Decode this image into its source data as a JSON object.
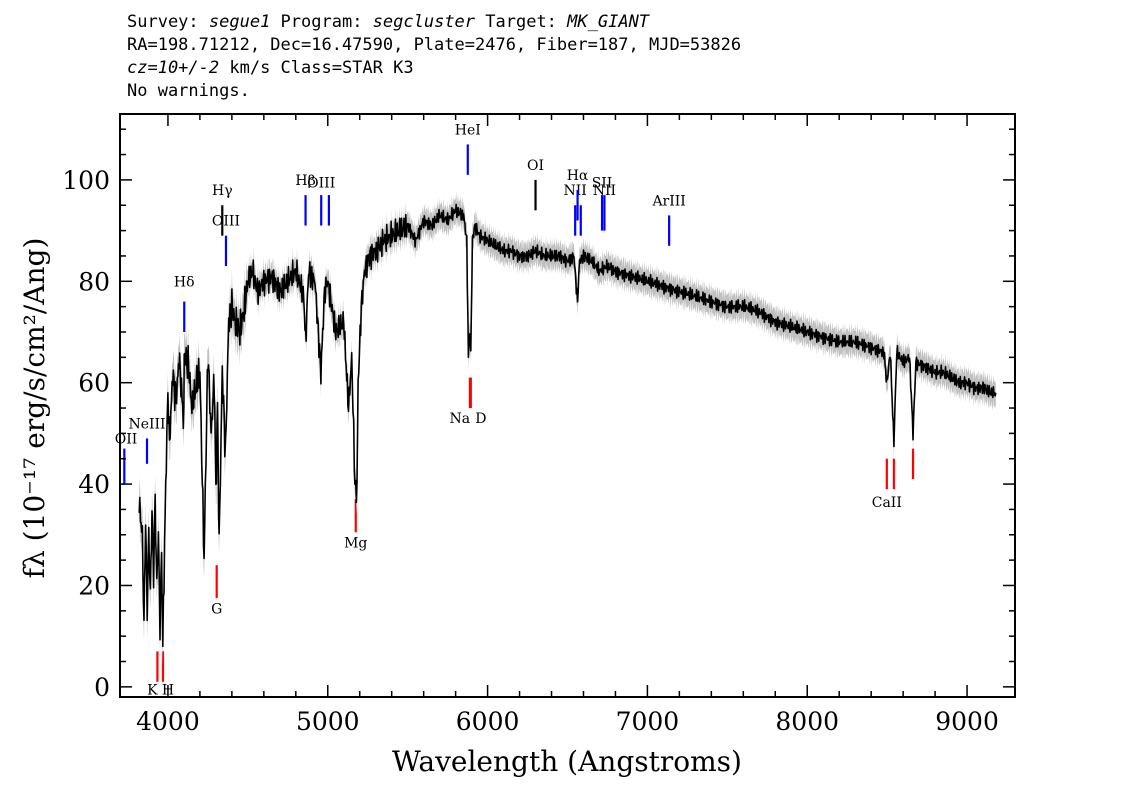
{
  "header": {
    "line1": [
      {
        "t": "Survey: ",
        "i": false
      },
      {
        "t": "segue1",
        "i": true
      },
      {
        "t": " Program: ",
        "i": false
      },
      {
        "t": "segcluster",
        "i": true
      },
      {
        "t": " Target: ",
        "i": false
      },
      {
        "t": "MK_GIANT",
        "i": true
      }
    ],
    "line2": "RA=198.71212, Dec=16.47590, Plate=2476, Fiber=187, MJD=53826",
    "line3": [
      {
        "t": "cz=10+/-2",
        "i": true
      },
      {
        "t": " km/s Class=STAR K3",
        "i": false
      }
    ],
    "line4": "No warnings."
  },
  "chart_data": {
    "type": "line",
    "xlabel": "Wavelength (Angstroms)",
    "ylabel": "fλ (10⁻¹⁷ erg/s/cm²/Ang)",
    "xlim": [
      3700,
      9300
    ],
    "ylim": [
      -2,
      113
    ],
    "x_ticks": [
      4000,
      5000,
      6000,
      7000,
      8000,
      9000
    ],
    "y_ticks": [
      0,
      20,
      40,
      60,
      80,
      100
    ],
    "series": [
      {
        "color": "#000000",
        "error_color": "#c0c0c0",
        "x": [
          3820,
          3840,
          3850,
          3860,
          3870,
          3880,
          3890,
          3900,
          3910,
          3920,
          3930,
          3940,
          3950,
          3960,
          3968,
          3975,
          3990,
          4000,
          4010,
          4030,
          4050,
          4070,
          4100,
          4102,
          4130,
          4150,
          4180,
          4200,
          4226,
          4250,
          4270,
          4290,
          4300,
          4310,
          4320,
          4340,
          4360,
          4380,
          4400,
          4420,
          4450,
          4480,
          4500,
          4530,
          4560,
          4600,
          4650,
          4700,
          4750,
          4800,
          4850,
          4861,
          4880,
          4920,
          4957,
          4980,
          5000,
          5050,
          5100,
          5130,
          5150,
          5170,
          5175,
          5183,
          5190,
          5210,
          5230,
          5260,
          5300,
          5350,
          5400,
          5450,
          5500,
          5550,
          5600,
          5650,
          5700,
          5750,
          5800,
          5850,
          5870,
          5880,
          5889,
          5895,
          5905,
          5920,
          5950,
          6000,
          6050,
          6100,
          6150,
          6200,
          6250,
          6300,
          6350,
          6400,
          6450,
          6500,
          6540,
          6563,
          6575,
          6600,
          6650,
          6700,
          6750,
          6800,
          6900,
          7000,
          7100,
          7200,
          7300,
          7400,
          7500,
          7600,
          7700,
          7800,
          7900,
          8000,
          8100,
          8200,
          8300,
          8400,
          8480,
          8498,
          8520,
          8542,
          8560,
          8600,
          8640,
          8662,
          8680,
          8750,
          8800,
          8850,
          8900,
          8950,
          9000,
          9050,
          9100,
          9150,
          9180
        ],
        "y": [
          36,
          30,
          12,
          33,
          15,
          30,
          18,
          35,
          22,
          37,
          20,
          30,
          12,
          26,
          8,
          22,
          45,
          58,
          48,
          62,
          56,
          65,
          52,
          66,
          63,
          55,
          60,
          62,
          25,
          66,
          50,
          61,
          38,
          56,
          28,
          62,
          46,
          72,
          75,
          72,
          70,
          75,
          80,
          82,
          78,
          80,
          81,
          78,
          80,
          82,
          77,
          68,
          82,
          80,
          62,
          78,
          80,
          70,
          72,
          55,
          65,
          40,
          38,
          40,
          60,
          75,
          82,
          85,
          86,
          88,
          89,
          90,
          91,
          88,
          92,
          91,
          93,
          92,
          94,
          93,
          88,
          65,
          70,
          66,
          88,
          91,
          89,
          88,
          87,
          86,
          86,
          85,
          85,
          86,
          85,
          85,
          85,
          84,
          85,
          76,
          84,
          85,
          84,
          82,
          83,
          82,
          81,
          80,
          79,
          78,
          77,
          76,
          75,
          75,
          74,
          72,
          71,
          70,
          69,
          68,
          68,
          67,
          66,
          60,
          66,
          48,
          66,
          64,
          65,
          50,
          64,
          63,
          62,
          62,
          61,
          60,
          60,
          59,
          59,
          58,
          58
        ]
      }
    ],
    "line_labels": [
      {
        "name": "OII",
        "x": 3727,
        "y_top": 47,
        "y_bot": 40,
        "label_y": 48,
        "color": "#0000ff"
      },
      {
        "name": "NeIII",
        "x": 3869,
        "y_top": 49,
        "y_bot": 44,
        "label_y": 51,
        "color": "#0000ff"
      },
      {
        "name": "Hδ",
        "x": 4102,
        "y_top": 76,
        "y_bot": 70,
        "label_y": 79,
        "color": "#0000ff"
      },
      {
        "name": "Hγ",
        "x": 4340,
        "y_top": 95,
        "y_bot": 89,
        "label_y": 97,
        "color": "#000000"
      },
      {
        "name": "OIII",
        "x": 4363,
        "y_top": 89,
        "y_bot": 83,
        "label_y": 91,
        "color": "#0000ff"
      },
      {
        "name": "Hβ",
        "x": 4861,
        "y_top": 97,
        "y_bot": 91,
        "label_y": 99,
        "color": "#0000ff"
      },
      {
        "name": "OIII",
        "x": 4959,
        "y_top": 97,
        "y_bot": 91,
        "label_y": 98.5,
        "color": "#0000ff"
      },
      {
        "name": "OIII",
        "x": 5007,
        "y_top": 97,
        "y_bot": 91,
        "label_y": null,
        "color": "#0000ff"
      },
      {
        "name": "HeI",
        "x": 5876,
        "y_top": 107,
        "y_bot": 101,
        "label_y": 109,
        "color": "#0000ff"
      },
      {
        "name": "OI",
        "x": 6300,
        "y_top": 100,
        "y_bot": 94,
        "label_y": 102,
        "color": "#000000"
      },
      {
        "name": "NII",
        "x": 6548,
        "y_top": 95,
        "y_bot": 89,
        "label_y": 97,
        "color": "#0000ff"
      },
      {
        "name": "Hα",
        "x": 6563,
        "y_top": 98,
        "y_bot": 92,
        "label_y": 100,
        "color": "#0000ff"
      },
      {
        "name": "NII",
        "x": 6583,
        "y_top": 95,
        "y_bot": 89,
        "label_y": null,
        "color": "#0000ff"
      },
      {
        "name": "SII",
        "x": 6716,
        "y_top": 97,
        "y_bot": 90,
        "label_y": 98.5,
        "color": "#0000ff"
      },
      {
        "name": "NII",
        "x": 6731,
        "y_top": 97,
        "y_bot": 90,
        "label_y": 97,
        "color": "#0000ff"
      },
      {
        "name": "ArIII",
        "x": 7136,
        "y_top": 93,
        "y_bot": 87,
        "label_y": 95,
        "color": "#0000ff"
      },
      {
        "name": "K",
        "x": 3934,
        "y_top": 7,
        "y_bot": 1,
        "label_y": -1.5,
        "color": "#ff0000"
      },
      {
        "name": "H",
        "x": 3969,
        "y_top": 7,
        "y_bot": 1,
        "label_y": -1.5,
        "color": "#ff0000"
      },
      {
        "name": "G",
        "x": 4305,
        "y_top": 24,
        "y_bot": 17.5,
        "label_y": 14.5,
        "color": "#ff0000"
      },
      {
        "name": "Mg",
        "x": 5175,
        "y_top": 37,
        "y_bot": 30.5,
        "label_y": 27.5,
        "color": "#ff0000"
      },
      {
        "name": "Na",
        "x": 5889,
        "y_top": 61,
        "y_bot": 55,
        "label_y": 52,
        "color": "#ff0000"
      },
      {
        "name": "D",
        "x": 5895,
        "y_top": 61,
        "y_bot": 55,
        "label_y": 52,
        "color": "#ff0000"
      },
      {
        "name": "CaII",
        "x": 8498,
        "y_top": 45,
        "y_bot": 39,
        "label_y": 35.5,
        "color": "#ff0000"
      },
      {
        "name": "CaII",
        "x": 8542,
        "y_top": 45,
        "y_bot": 39,
        "label_y": null,
        "color": "#ff0000"
      },
      {
        "name": "CaII",
        "x": 8662,
        "y_top": 47,
        "y_bot": 41,
        "label_y": null,
        "color": "#ff0000"
      }
    ]
  }
}
